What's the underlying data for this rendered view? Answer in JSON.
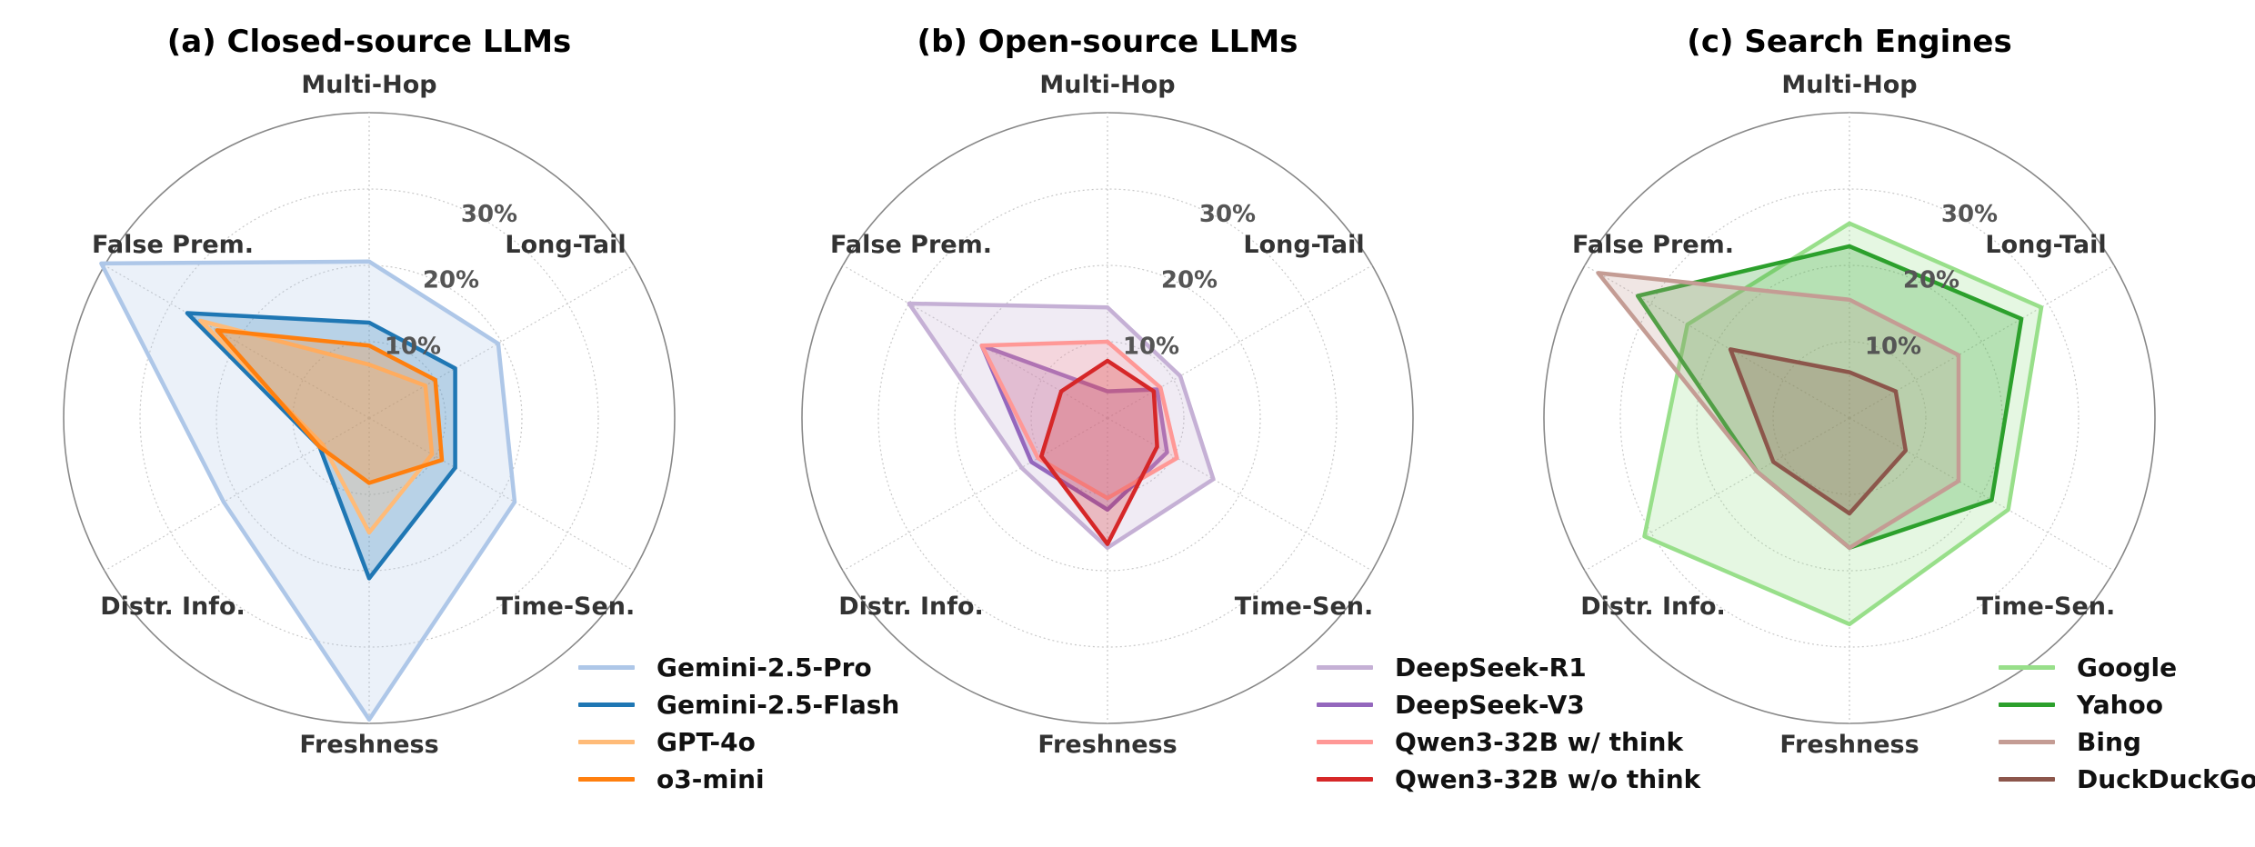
{
  "axes": [
    "Multi-Hop",
    "Long-Tail",
    "Time-Sen.",
    "Freshness",
    "Distr. Info.",
    "False Prem."
  ],
  "rings": [
    {
      "value": 10,
      "label": "10%"
    },
    {
      "value": 20,
      "label": "20%"
    },
    {
      "value": 30,
      "label": "30%"
    },
    {
      "value": 40,
      "label": ""
    }
  ],
  "chart_data": [
    {
      "type": "radar",
      "title": "(a) Closed-source LLMs",
      "categories": [
        "Multi-Hop",
        "Long-Tail",
        "Time-Sen.",
        "Freshness",
        "Distr. Info.",
        "False Prem."
      ],
      "rlim": [
        0,
        40
      ],
      "grid": true,
      "legend_position": "bottom-right",
      "series": [
        {
          "name": "Gemini-2.5-Pro",
          "color": "#aec7e8",
          "values": [
            20.5,
            19.5,
            22.0,
            39.5,
            22.0,
            40.5
          ]
        },
        {
          "name": "Gemini-2.5-Flash",
          "color": "#1f77b4",
          "values": [
            12.5,
            13.0,
            13.0,
            21.0,
            7.5,
            27.5
          ]
        },
        {
          "name": "GPT-4o",
          "color": "#ffbb78",
          "values": [
            7.0,
            8.5,
            9.5,
            15.0,
            7.0,
            25.5
          ]
        },
        {
          "name": "o3-mini",
          "color": "#ff7f0e",
          "values": [
            9.5,
            10.0,
            11.0,
            8.5,
            7.5,
            23.0
          ]
        }
      ]
    },
    {
      "type": "radar",
      "title": "(b) Open-source LLMs",
      "categories": [
        "Multi-Hop",
        "Long-Tail",
        "Time-Sen.",
        "Freshness",
        "Distr. Info.",
        "False Prem."
      ],
      "rlim": [
        0,
        40
      ],
      "grid": true,
      "legend_position": "bottom-right",
      "series": [
        {
          "name": "DeepSeek-R1",
          "color": "#c5b0d5",
          "values": [
            14.5,
            11.0,
            16.0,
            17.0,
            13.0,
            30.0
          ]
        },
        {
          "name": "DeepSeek-V3",
          "color": "#9467bd",
          "values": [
            3.5,
            7.5,
            9.0,
            12.0,
            11.5,
            19.0
          ]
        },
        {
          "name": "Qwen3-32B w/ think",
          "color": "#ff9896",
          "values": [
            10.0,
            8.0,
            10.5,
            10.5,
            10.5,
            19.0
          ]
        },
        {
          "name": "Qwen3-32B w/o think",
          "color": "#d62728",
          "values": [
            7.5,
            7.0,
            7.5,
            16.5,
            10.0,
            7.0
          ]
        }
      ]
    },
    {
      "type": "radar",
      "title": "(c) Search Engines",
      "categories": [
        "Multi-Hop",
        "Long-Tail",
        "Time-Sen.",
        "Freshness",
        "Distr. Info.",
        "False Prem."
      ],
      "rlim": [
        0,
        40
      ],
      "grid": true,
      "legend_position": "bottom-right",
      "series": [
        {
          "name": "Google",
          "color": "#98df8a",
          "values": [
            25.5,
            29.0,
            24.0,
            27.0,
            31.0,
            24.5
          ]
        },
        {
          "name": "Yahoo",
          "color": "#2ca02c",
          "values": [
            22.5,
            26.0,
            21.5,
            17.0,
            14.0,
            32.0
          ]
        },
        {
          "name": "Bing",
          "color": "#c49c94",
          "values": [
            15.5,
            16.5,
            16.5,
            17.0,
            14.0,
            38.0
          ]
        },
        {
          "name": "DuckDuckGo",
          "color": "#8c564b",
          "values": [
            6.0,
            7.0,
            8.5,
            12.5,
            11.5,
            18.0
          ]
        }
      ]
    }
  ]
}
